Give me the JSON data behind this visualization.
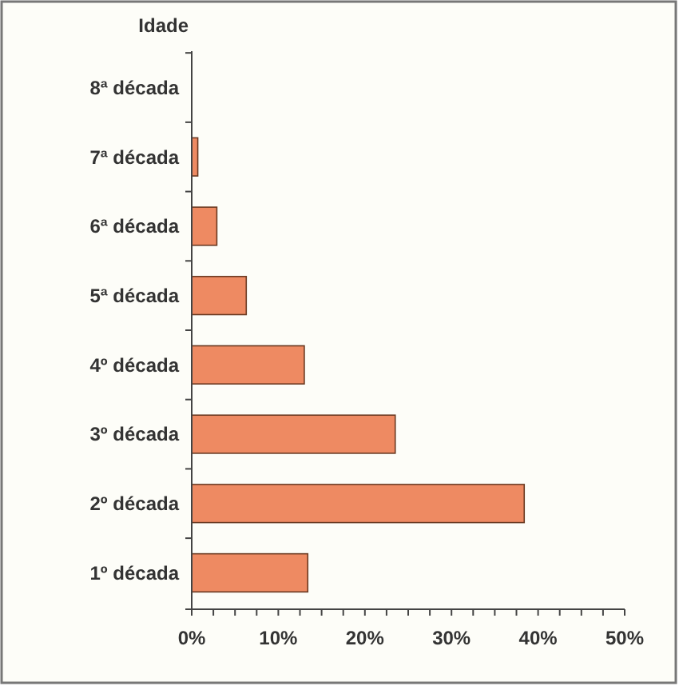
{
  "chart_data": {
    "type": "bar",
    "orientation": "horizontal",
    "ylabel": "Idade",
    "categories": [
      "8ª década",
      "7ª década",
      "6ª década",
      "5ª década",
      "4º década",
      "3º década",
      "2º década",
      "1º década"
    ],
    "values": [
      0,
      0.7,
      2.9,
      6.3,
      13,
      23.5,
      38.4,
      13.4
    ],
    "color": "#ee8a62",
    "xlim": [
      0,
      50
    ],
    "xticks": [
      {
        "value": 0,
        "label": "0%"
      },
      {
        "value": 2.5,
        "label": null
      },
      {
        "value": 5,
        "label": null
      },
      {
        "value": 7.5,
        "label": null
      },
      {
        "value": 10,
        "label": "10%"
      },
      {
        "value": 12.5,
        "label": null
      },
      {
        "value": 15,
        "label": null
      },
      {
        "value": 17.5,
        "label": null
      },
      {
        "value": 20,
        "label": "20%"
      },
      {
        "value": 22.5,
        "label": null
      },
      {
        "value": 25,
        "label": null
      },
      {
        "value": 27.5,
        "label": null
      },
      {
        "value": 30,
        "label": "30%"
      },
      {
        "value": 32.5,
        "label": null
      },
      {
        "value": 35,
        "label": null
      },
      {
        "value": 37.5,
        "label": null
      },
      {
        "value": 40,
        "label": "40%"
      },
      {
        "value": 42.5,
        "label": null
      },
      {
        "value": 45,
        "label": null
      },
      {
        "value": 47.5,
        "label": null
      },
      {
        "value": 50,
        "label": "50%"
      }
    ],
    "grid": false
  }
}
